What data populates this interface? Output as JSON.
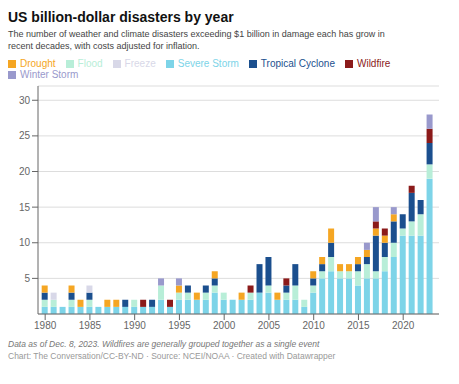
{
  "chart_data": {
    "type": "bar",
    "title": "US billion-dollar disasters by year",
    "subtitle": "The number of weather and climate disasters exceeding $1 billion in damage each has grow in\nrecent decades, with costs adjusted for inflation.",
    "annotations": [
      "Data as of Dec. 8, 2023. Wildfires are generally grouped together as a single event",
      "Chart: The Conversation/CC-BY-ND · Source: NCEI/NOAA · Created with Datawrapper"
    ],
    "stacked": true,
    "x": [
      1980,
      1981,
      1982,
      1983,
      1984,
      1985,
      1986,
      1987,
      1988,
      1989,
      1990,
      1991,
      1992,
      1993,
      1994,
      1995,
      1996,
      1997,
      1998,
      1999,
      2000,
      2001,
      2002,
      2003,
      2004,
      2005,
      2006,
      2007,
      2008,
      2009,
      2010,
      2011,
      2012,
      2013,
      2014,
      2015,
      2016,
      2017,
      2018,
      2019,
      2020,
      2021,
      2022,
      2023
    ],
    "series": [
      {
        "name": "Severe Storm",
        "color": "#7DD4E8",
        "values": [
          1,
          1,
          1,
          1,
          1,
          1,
          1,
          1,
          1,
          1,
          1,
          1,
          1,
          2,
          1,
          2,
          2,
          2,
          2,
          3,
          2,
          2,
          2,
          2,
          3,
          3,
          2,
          2,
          2,
          1,
          3,
          5,
          6,
          5,
          5,
          4,
          5,
          5,
          6,
          8,
          11,
          11,
          11,
          19
        ]
      },
      {
        "name": "Flood",
        "color": "#B8EED8",
        "values": [
          1,
          1,
          0,
          1,
          0,
          1,
          0,
          0,
          0,
          0,
          1,
          0,
          0,
          2,
          0,
          1,
          1,
          0,
          1,
          1,
          1,
          0,
          0,
          1,
          0,
          1,
          0,
          1,
          2,
          1,
          1,
          1,
          2,
          1,
          1,
          2,
          2,
          1,
          2,
          2,
          1,
          2,
          3,
          2
        ]
      },
      {
        "name": "Tropical Cyclone",
        "color": "#1B4F8E",
        "values": [
          1,
          0,
          0,
          1,
          0,
          1,
          0,
          0,
          0,
          1,
          0,
          0,
          1,
          0,
          0,
          0,
          1,
          0,
          1,
          1,
          0,
          0,
          0,
          0,
          4,
          4,
          0,
          1,
          3,
          0,
          1,
          1,
          2,
          0,
          0,
          1,
          1,
          5,
          2,
          3,
          2,
          4,
          2,
          3
        ]
      },
      {
        "name": "Drought",
        "color": "#F5A623",
        "values": [
          1,
          0,
          0,
          1,
          1,
          0,
          0,
          1,
          1,
          0,
          0,
          0,
          0,
          0,
          0,
          1,
          0,
          1,
          0,
          1,
          0,
          0,
          1,
          0,
          0,
          0,
          1,
          0,
          0,
          0,
          1,
          1,
          2,
          1,
          1,
          1,
          1,
          1,
          1,
          1,
          0,
          0,
          0,
          0
        ]
      },
      {
        "name": "Wildfire",
        "color": "#8B1A1A",
        "values": [
          0,
          0,
          0,
          0,
          0,
          0,
          0,
          0,
          0,
          0,
          0,
          1,
          0,
          0,
          1,
          0,
          0,
          0,
          0,
          0,
          0,
          0,
          0,
          1,
          0,
          0,
          0,
          1,
          0,
          0,
          0,
          0,
          0,
          0,
          0,
          0,
          0,
          1,
          1,
          0,
          0,
          1,
          0,
          2
        ]
      },
      {
        "name": "Freeze",
        "color": "#D8D8E8",
        "values": [
          0,
          1,
          0,
          0,
          0,
          1,
          0,
          0,
          0,
          0,
          0,
          0,
          0,
          0,
          0,
          0,
          0,
          0,
          0,
          0,
          0,
          0,
          0,
          0,
          0,
          0,
          0,
          0,
          0,
          0,
          0,
          0,
          0,
          0,
          0,
          0,
          0,
          0,
          0,
          0,
          0,
          0,
          0,
          0
        ]
      },
      {
        "name": "Winter Storm",
        "color": "#9999CC",
        "values": [
          0,
          0,
          0,
          0,
          0,
          0,
          0,
          0,
          0,
          0,
          0,
          0,
          0,
          1,
          0,
          1,
          0,
          0,
          0,
          0,
          0,
          0,
          0,
          0,
          0,
          0,
          0,
          0,
          0,
          0,
          0,
          0,
          0,
          0,
          0,
          0,
          1,
          2,
          0,
          1,
          0,
          0,
          0,
          2
        ]
      }
    ],
    "xlim": [
      1979.2,
      2024.0
    ],
    "ylim": [
      0,
      32
    ],
    "xticks": [
      1980,
      1985,
      1990,
      1995,
      2000,
      2005,
      2010,
      2015,
      2020
    ],
    "yticks": [
      5,
      10,
      15,
      20,
      25,
      30
    ],
    "grid": true,
    "legend": "top"
  }
}
